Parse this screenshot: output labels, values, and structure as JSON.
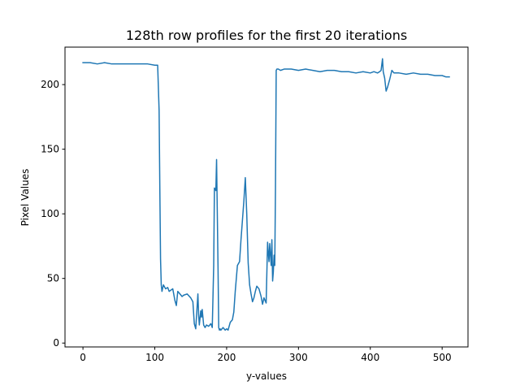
{
  "chart_data": {
    "type": "line",
    "title": "128th row profiles for the first 20 iterations",
    "xlabel": "y-values",
    "ylabel": "Pixel Values",
    "xlim": [
      -25,
      536
    ],
    "ylim": [
      -3,
      229
    ],
    "xticks": [
      0,
      100,
      200,
      300,
      400,
      500
    ],
    "yticks": [
      0,
      50,
      100,
      150,
      200
    ],
    "xtick_labels": [
      "0",
      "100",
      "200",
      "300",
      "400",
      "500"
    ],
    "ytick_labels": [
      "0",
      "50",
      "100",
      "150",
      "200"
    ],
    "grid": false,
    "series": [
      {
        "color": "#1f77b4",
        "x": [
          0,
          10,
          20,
          30,
          40,
          50,
          60,
          70,
          80,
          90,
          100,
          104,
          106,
          107,
          108,
          109,
          110,
          112,
          115,
          118,
          120,
          125,
          128,
          130,
          132,
          135,
          138,
          140,
          145,
          150,
          153,
          155,
          157,
          158,
          160,
          161,
          162,
          164,
          165,
          166,
          168,
          170,
          172,
          175,
          178,
          180,
          182,
          183,
          185,
          186,
          188,
          189,
          190,
          191,
          192,
          195,
          198,
          200,
          202,
          205,
          208,
          210,
          212,
          215,
          218,
          220,
          222,
          224,
          226,
          228,
          230,
          232,
          234,
          236,
          238,
          240,
          242,
          245,
          248,
          250,
          252,
          255,
          257,
          258,
          259,
          260,
          262,
          263,
          264,
          265,
          266,
          267,
          268,
          269,
          270,
          272,
          275,
          280,
          290,
          300,
          310,
          320,
          330,
          340,
          350,
          360,
          370,
          380,
          390,
          400,
          405,
          410,
          413,
          415,
          417,
          418,
          420,
          422,
          424,
          427,
          430,
          433,
          435,
          440,
          450,
          460,
          470,
          480,
          490,
          500,
          505,
          510
        ],
        "y": [
          217,
          217,
          216,
          217,
          216,
          216,
          216,
          216,
          216,
          216,
          215,
          215,
          180,
          120,
          65,
          45,
          40,
          45,
          42,
          43,
          40,
          42,
          33,
          29,
          40,
          38,
          36,
          37,
          38,
          35,
          32,
          15,
          11,
          20,
          38,
          22,
          14,
          25,
          20,
          26,
          14,
          12,
          14,
          13,
          15,
          12,
          60,
          120,
          118,
          142,
          60,
          12,
          10,
          11,
          10,
          12,
          10,
          11,
          10,
          16,
          18,
          24,
          40,
          60,
          63,
          80,
          95,
          110,
          128,
          100,
          62,
          45,
          38,
          32,
          35,
          40,
          44,
          42,
          36,
          30,
          35,
          31,
          78,
          70,
          63,
          77,
          60,
          80,
          48,
          55,
          68,
          60,
          120,
          211,
          212,
          212,
          211,
          212,
          212,
          211,
          212,
          211,
          210,
          211,
          211,
          210,
          210,
          209,
          210,
          209,
          210,
          209,
          210,
          211,
          220,
          210,
          205,
          195,
          198,
          204,
          211,
          209,
          209,
          209,
          208,
          209,
          208,
          208,
          207,
          207,
          206,
          206
        ]
      }
    ]
  }
}
